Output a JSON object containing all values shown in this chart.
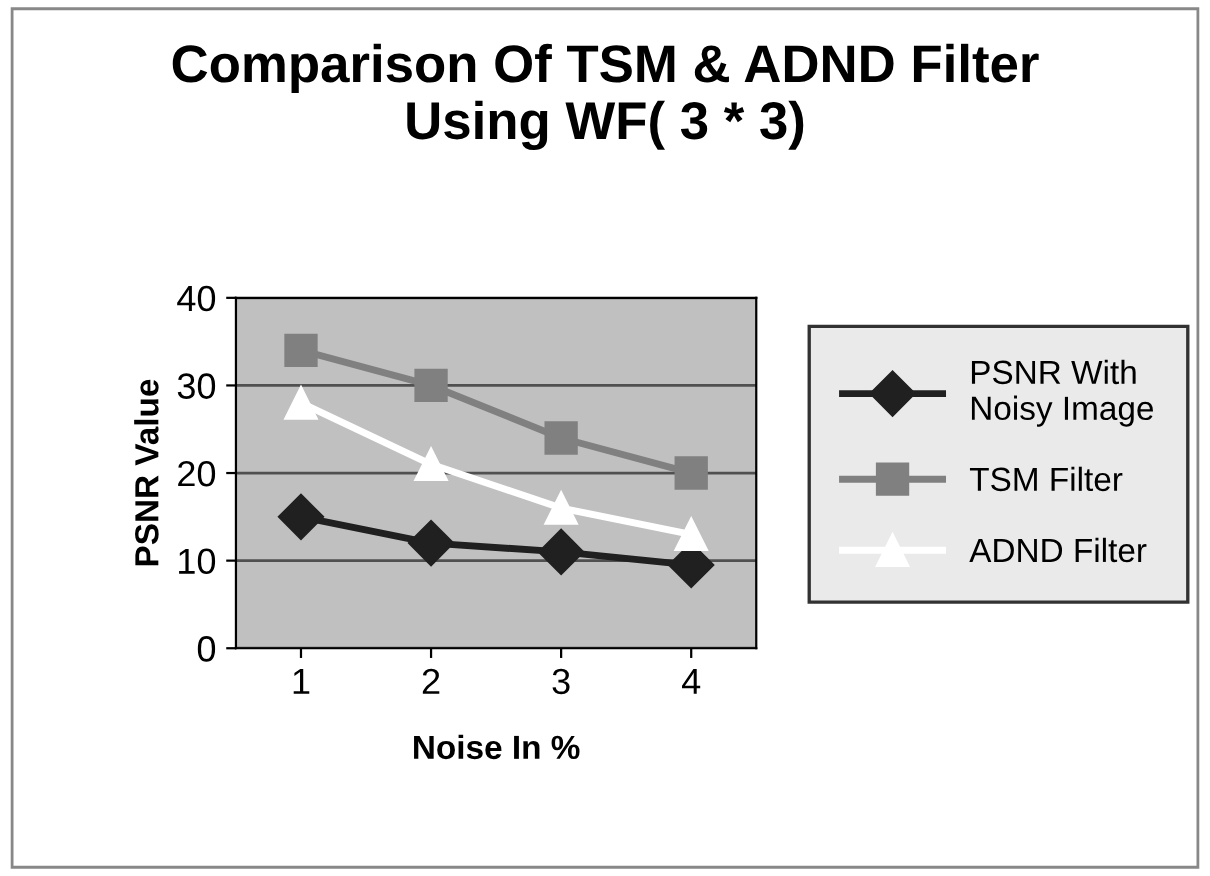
{
  "chart_data": {
    "type": "line",
    "title": "Comparison Of TSM & ADND Filter\nUsing WF( 3 * 3)",
    "xlabel": "Noise In %",
    "ylabel": "PSNR Value",
    "categories": [
      "1",
      "2",
      "3",
      "4"
    ],
    "series": [
      {
        "name": "PSNR With\nNoisy Image",
        "color": "#202020",
        "marker": "diamond",
        "values": [
          15,
          12,
          11,
          9.5
        ]
      },
      {
        "name": "TSM Filter",
        "color": "#808080",
        "marker": "square",
        "values": [
          34,
          30,
          24,
          20
        ]
      },
      {
        "name": "ADND Filter",
        "color": "#ffffff",
        "marker": "triangle",
        "values": [
          28,
          21,
          16,
          13
        ]
      }
    ],
    "ylim": [
      0,
      40
    ],
    "yticks": [
      0,
      10,
      20,
      30,
      40
    ],
    "grid": "y",
    "legend": "right"
  }
}
